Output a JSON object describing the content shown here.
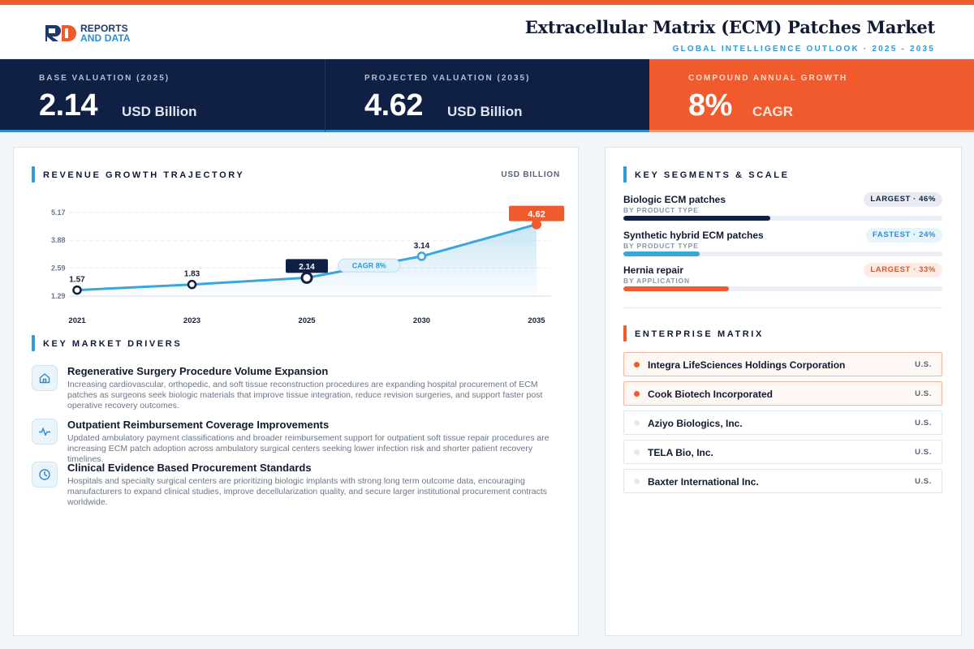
{
  "brand": {
    "line1": "REPORTS",
    "line2": "AND DATA",
    "colors": {
      "navy": "#1d3a6e",
      "blue": "#2a8fd0",
      "accent": "#f05a2c"
    }
  },
  "header": {
    "title": "Extracellular Matrix (ECM) Patches Market",
    "subtitle": "GLOBAL INTELLIGENCE OUTLOOK  ·  2025 - 2035"
  },
  "kpis": [
    {
      "label": "BASE VALUATION (2025)",
      "value": "2.14",
      "unit": "USD Billion"
    },
    {
      "label": "PROJECTED VALUATION (2035)",
      "value": "4.62",
      "unit": "USD Billion"
    },
    {
      "label": "COMPOUND ANNUAL GROWTH",
      "value": "8%",
      "unit": "CAGR"
    }
  ],
  "revenue": {
    "title": "REVENUE GROWTH TRAJECTORY",
    "unit": "USD BILLION"
  },
  "chart_data": {
    "type": "line",
    "x": [
      "2021",
      "2023",
      "2025",
      "2030",
      "2035"
    ],
    "values": [
      1.57,
      1.83,
      2.14,
      3.14,
      4.62
    ],
    "data_labels": [
      "1.57",
      "1.83",
      "2.14",
      "3.14",
      "4.62"
    ],
    "yticks": [
      "5.17",
      "3.88",
      "2.59",
      "1.29"
    ],
    "ytick_values": [
      5.17,
      3.88,
      2.59,
      1.29
    ],
    "ylim": [
      1.29,
      5.17
    ],
    "annotation": "CAGR 8%",
    "grid": true,
    "colors": {
      "line": "#3aa6dc",
      "highlight": "#0f2044",
      "last": "#f05a2c"
    }
  },
  "drivers": {
    "title": "KEY MARKET DRIVERS",
    "items": [
      {
        "icon": "home-icon",
        "title": "Regenerative Surgery Procedure Volume Expansion",
        "desc": "Increasing cardiovascular, orthopedic, and soft tissue reconstruction procedures are expanding hospital procurement of ECM patches as surgeons seek biologic materials that improve tissue integration, reduce revision surgeries, and support faster post operative recovery outcomes."
      },
      {
        "icon": "pulse-icon",
        "title": "Outpatient Reimbursement Coverage Improvements",
        "desc": "Updated ambulatory payment classifications and broader reimbursement support for outpatient soft tissue repair procedures are increasing ECM patch adoption across ambulatory surgical centers seeking lower infection risk and shorter patient recovery timelines."
      },
      {
        "icon": "clock-icon",
        "title": "Clinical Evidence Based Procurement Standards",
        "desc": "Hospitals and specialty surgical centers are prioritizing biologic implants with strong long term outcome data, encouraging manufacturers to expand clinical studies, improve decellularization quality, and secure larger institutional procurement contracts worldwide."
      }
    ]
  },
  "segments": {
    "title": "KEY SEGMENTS & SCALE",
    "items": [
      {
        "name": "Biologic ECM patches",
        "sub": "BY PRODUCT TYPE",
        "badge": "LARGEST · 46%",
        "share": 0.46,
        "color": "#0f2044",
        "badge_bg": "#e8ecf2",
        "badge_color": "#0f2044"
      },
      {
        "name": "Synthetic hybrid ECM patches",
        "sub": "BY PRODUCT TYPE",
        "badge": "FASTEST · 24%",
        "share": 0.24,
        "color": "#3aa6dc",
        "badge_bg": "#e6f4fb",
        "badge_color": "#2a8fd0"
      },
      {
        "name": "Hernia repair",
        "sub": "BY APPLICATION",
        "badge": "LARGEST · 33%",
        "share": 0.33,
        "color": "#f05a2c",
        "badge_bg": "#fdece5",
        "badge_color": "#e0552b"
      }
    ]
  },
  "enterprise": {
    "title": "ENTERPRISE MATRIX",
    "items": [
      {
        "name": "Integra LifeSciences Holdings Corporation",
        "country": "U.S.",
        "highlight": true
      },
      {
        "name": "Cook Biotech Incorporated",
        "country": "U.S.",
        "highlight": true
      },
      {
        "name": "Aziyo Biologics, Inc.",
        "country": "U.S.",
        "highlight": false
      },
      {
        "name": "TELA Bio, Inc.",
        "country": "U.S.",
        "highlight": false
      },
      {
        "name": "Baxter International Inc.",
        "country": "U.S.",
        "highlight": false
      }
    ]
  }
}
